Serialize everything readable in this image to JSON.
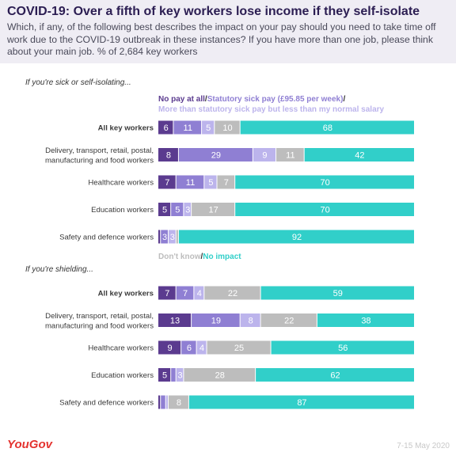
{
  "header": {
    "title": "COVID-19: Over a fifth of key workers lose income if they self-isolate",
    "subtitle": "Which, if any, of the following best describes the impact on your pay should you need to take time off work due to the COVID-19 outbreak in these instances? If you have more than one job, please think about your main job. % of 2,684 key workers"
  },
  "legend": {
    "no_pay": "No pay at all",
    "ssp": "Statutory sick pay (£95.85 per week)",
    "slash": "/",
    "more_than_ssp": "More than statutory sick pay but less than my normal salary",
    "dont_know": "Don't know",
    "no_impact": "No impact"
  },
  "footer": {
    "brand": "YouGov",
    "date": "7-15 May 2020"
  },
  "chart_data": {
    "type": "bar",
    "orientation": "horizontal",
    "stacked": true,
    "xlim": [
      0,
      100
    ],
    "series": [
      {
        "name": "No pay at all",
        "color": "#5b3b8f"
      },
      {
        "name": "Statutory sick pay (£95.85 per week)",
        "color": "#8f7fd3"
      },
      {
        "name": "More than statutory sick pay but less than my normal salary",
        "color": "#bcb4ec"
      },
      {
        "name": "Don't know",
        "color": "#bdbdbd"
      },
      {
        "name": "No impact",
        "color": "#31cfc9"
      }
    ],
    "panels": [
      {
        "label": "If you're sick or self-isolating...",
        "rows": [
          {
            "category": "All key workers",
            "bold": true,
            "values": [
              6,
              11,
              5,
              10,
              68
            ]
          },
          {
            "category": "Delivery, transport, retail, postal,\nmanufacturing and food workers",
            "values": [
              8,
              29,
              9,
              11,
              42
            ]
          },
          {
            "category": "Healthcare workers",
            "values": [
              7,
              11,
              5,
              7,
              70
            ]
          },
          {
            "category": "Education workers",
            "values": [
              5,
              5,
              3,
              17,
              70
            ]
          },
          {
            "category": "Safety and defence workers",
            "values": [
              1,
              3,
              3,
              1,
              92
            ]
          }
        ]
      },
      {
        "label": "If you're shielding...",
        "rows": [
          {
            "category": "All key workers",
            "bold": true,
            "values": [
              7,
              7,
              4,
              22,
              59
            ]
          },
          {
            "category": "Delivery, transport, retail, postal,\nmanufacturing and food workers",
            "values": [
              13,
              19,
              8,
              22,
              38
            ]
          },
          {
            "category": "Healthcare workers",
            "values": [
              9,
              6,
              4,
              25,
              56
            ]
          },
          {
            "category": "Education workers",
            "values": [
              5,
              2,
              3,
              28,
              62
            ]
          },
          {
            "category": "Safety and defence workers",
            "values": [
              1,
              2,
              1,
              8,
              87
            ]
          }
        ]
      }
    ]
  }
}
